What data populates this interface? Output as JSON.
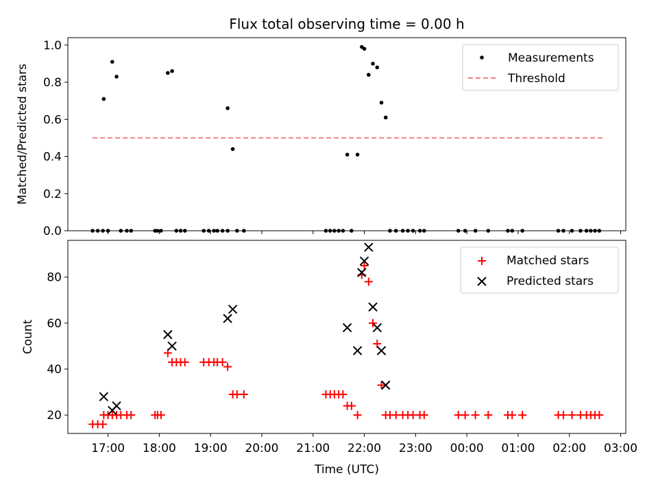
{
  "title": "Flux total observing time = 0.00 h",
  "colors": {
    "measurement": "#000000",
    "threshold": "#f08080",
    "matched": "#ff0000",
    "predicted": "#000000",
    "axis": "#000000"
  },
  "chart_data": [
    {
      "type": "scatter",
      "ylabel": "Matched/Predicted stars",
      "xlabel": "",
      "ylim": [
        0,
        1.04
      ],
      "yticks": [
        0.0,
        0.2,
        0.4,
        0.6,
        0.8,
        1.0
      ],
      "ytick_labels": [
        "0.0",
        "0.2",
        "0.4",
        "0.6",
        "0.8",
        "1.0"
      ],
      "legend_position": "top-right",
      "grid": false,
      "series": [
        {
          "name": "Measurements",
          "kind": "points",
          "points": [
            [
              "16:42",
              0
            ],
            [
              "16:48",
              0
            ],
            [
              "16:54",
              0
            ],
            [
              "16:55",
              0.71
            ],
            [
              "17:00",
              0
            ],
            [
              "17:05",
              0.91
            ],
            [
              "17:10",
              0.83
            ],
            [
              "17:15",
              0
            ],
            [
              "17:22",
              0
            ],
            [
              "17:27",
              0
            ],
            [
              "17:55",
              0
            ],
            [
              "17:58",
              0
            ],
            [
              "18:02",
              0
            ],
            [
              "18:10",
              0.85
            ],
            [
              "18:15",
              0.86
            ],
            [
              "18:20",
              0
            ],
            [
              "18:25",
              0
            ],
            [
              "18:30",
              0
            ],
            [
              "18:52",
              0
            ],
            [
              "18:58",
              0
            ],
            [
              "19:04",
              0
            ],
            [
              "19:08",
              0
            ],
            [
              "19:14",
              0
            ],
            [
              "19:20",
              0
            ],
            [
              "19:20",
              0.66
            ],
            [
              "19:26",
              0.44
            ],
            [
              "19:31",
              0
            ],
            [
              "19:39",
              0
            ],
            [
              "21:15",
              0
            ],
            [
              "21:20",
              0
            ],
            [
              "21:25",
              0
            ],
            [
              "21:30",
              0
            ],
            [
              "21:35",
              0
            ],
            [
              "21:40",
              0.41
            ],
            [
              "21:45",
              0
            ],
            [
              "21:52",
              0.41
            ],
            [
              "21:57",
              0.99
            ],
            [
              "22:00",
              0.98
            ],
            [
              "22:05",
              0.84
            ],
            [
              "22:10",
              0.9
            ],
            [
              "22:15",
              0.88
            ],
            [
              "22:20",
              0.69
            ],
            [
              "22:25",
              0.61
            ],
            [
              "22:30",
              0
            ],
            [
              "22:37",
              0
            ],
            [
              "22:45",
              0
            ],
            [
              "22:51",
              0
            ],
            [
              "22:57",
              0
            ],
            [
              "23:05",
              0
            ],
            [
              "23:10",
              0
            ],
            [
              "23:50",
              0
            ],
            [
              "23:58",
              0
            ],
            [
              "24:10",
              0
            ],
            [
              "24:25",
              0
            ],
            [
              "24:48",
              0
            ],
            [
              "24:53",
              0
            ],
            [
              "25:05",
              0
            ],
            [
              "25:47",
              0
            ],
            [
              "25:53",
              0
            ],
            [
              "26:03",
              0
            ],
            [
              "26:13",
              0
            ],
            [
              "26:20",
              0
            ],
            [
              "26:25",
              0
            ],
            [
              "26:30",
              0
            ],
            [
              "26:35",
              0
            ]
          ]
        },
        {
          "name": "Threshold",
          "kind": "dashed-line",
          "x": [
            "16:42",
            "26:40"
          ],
          "y": [
            0.5,
            0.5
          ]
        }
      ]
    },
    {
      "type": "scatter",
      "ylabel": "Count",
      "xlabel": "Time (UTC)",
      "xlim": [
        "16:13",
        "27:06"
      ],
      "ylim": [
        12,
        96
      ],
      "yticks": [
        20,
        40,
        60,
        80
      ],
      "ytick_labels": [
        "20",
        "40",
        "60",
        "80"
      ],
      "xticks": [
        "17:00",
        "18:00",
        "19:00",
        "20:00",
        "21:00",
        "22:00",
        "23:00",
        "24:00",
        "25:00",
        "26:00",
        "27:00"
      ],
      "xtick_labels": [
        "17:00",
        "18:00",
        "19:00",
        "20:00",
        "21:00",
        "22:00",
        "23:00",
        "00:00",
        "01:00",
        "02:00",
        "03:00"
      ],
      "legend_position": "top-right",
      "grid": false,
      "series": [
        {
          "name": "Matched stars",
          "marker": "+",
          "points": [
            [
              "16:42",
              16
            ],
            [
              "16:48",
              16
            ],
            [
              "16:54",
              16
            ],
            [
              "16:55",
              20
            ],
            [
              "17:00",
              20
            ],
            [
              "17:05",
              20
            ],
            [
              "17:10",
              20
            ],
            [
              "17:15",
              20
            ],
            [
              "17:22",
              20
            ],
            [
              "17:27",
              20
            ],
            [
              "17:55",
              20
            ],
            [
              "17:58",
              20
            ],
            [
              "18:02",
              20
            ],
            [
              "18:10",
              47
            ],
            [
              "18:15",
              43
            ],
            [
              "18:20",
              43
            ],
            [
              "18:25",
              43
            ],
            [
              "18:30",
              43
            ],
            [
              "18:52",
              43
            ],
            [
              "18:58",
              43
            ],
            [
              "19:04",
              43
            ],
            [
              "19:08",
              43
            ],
            [
              "19:14",
              43
            ],
            [
              "19:20",
              41
            ],
            [
              "19:26",
              29
            ],
            [
              "19:31",
              29
            ],
            [
              "19:39",
              29
            ],
            [
              "21:15",
              29
            ],
            [
              "21:20",
              29
            ],
            [
              "21:25",
              29
            ],
            [
              "21:30",
              29
            ],
            [
              "21:35",
              29
            ],
            [
              "21:40",
              24
            ],
            [
              "21:45",
              24
            ],
            [
              "21:52",
              20
            ],
            [
              "21:57",
              81
            ],
            [
              "22:00",
              85
            ],
            [
              "22:05",
              78
            ],
            [
              "22:10",
              60
            ],
            [
              "22:15",
              51
            ],
            [
              "22:20",
              33
            ],
            [
              "22:25",
              20
            ],
            [
              "22:30",
              20
            ],
            [
              "22:37",
              20
            ],
            [
              "22:45",
              20
            ],
            [
              "22:51",
              20
            ],
            [
              "22:57",
              20
            ],
            [
              "23:05",
              20
            ],
            [
              "23:10",
              20
            ],
            [
              "23:50",
              20
            ],
            [
              "23:58",
              20
            ],
            [
              "24:10",
              20
            ],
            [
              "24:25",
              20
            ],
            [
              "24:48",
              20
            ],
            [
              "24:53",
              20
            ],
            [
              "25:05",
              20
            ],
            [
              "25:47",
              20
            ],
            [
              "25:53",
              20
            ],
            [
              "26:03",
              20
            ],
            [
              "26:13",
              20
            ],
            [
              "26:20",
              20
            ],
            [
              "26:25",
              20
            ],
            [
              "26:30",
              20
            ],
            [
              "26:35",
              20
            ]
          ]
        },
        {
          "name": "Predicted stars",
          "marker": "x",
          "points": [
            [
              "16:55",
              28
            ],
            [
              "17:05",
              22
            ],
            [
              "17:10",
              24
            ],
            [
              "18:10",
              55
            ],
            [
              "18:15",
              50
            ],
            [
              "19:20",
              62
            ],
            [
              "19:26",
              66
            ],
            [
              "21:40",
              58
            ],
            [
              "21:52",
              48
            ],
            [
              "21:57",
              82
            ],
            [
              "22:00",
              87
            ],
            [
              "22:05",
              93
            ],
            [
              "22:10",
              67
            ],
            [
              "22:15",
              58
            ],
            [
              "22:20",
              48
            ],
            [
              "22:25",
              33
            ]
          ]
        }
      ]
    }
  ]
}
